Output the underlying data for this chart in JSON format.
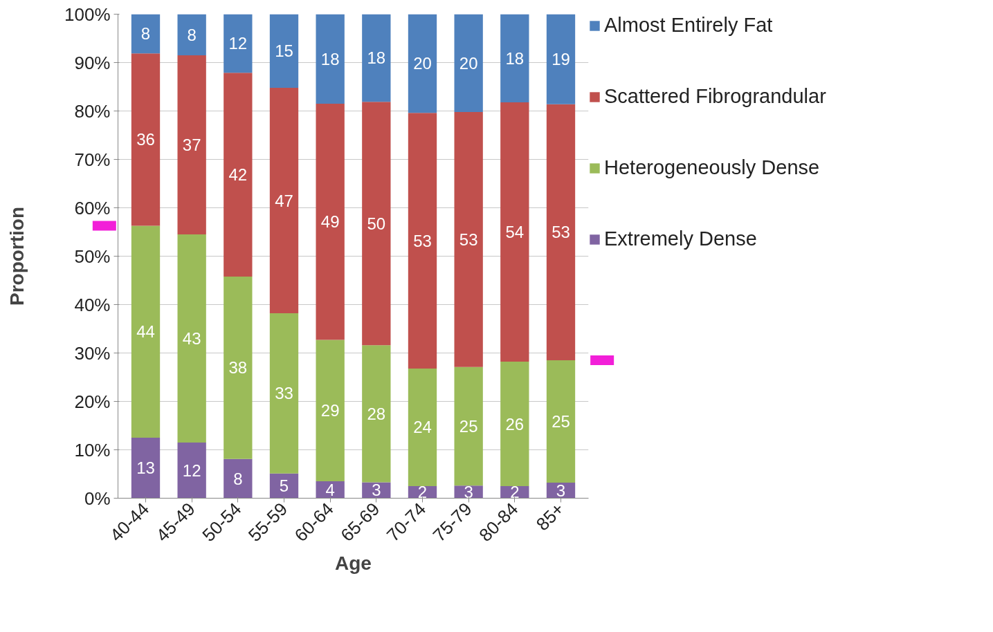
{
  "chart_data": {
    "type": "bar",
    "stacked": true,
    "xlabel": "Age",
    "ylabel": "Proportion",
    "categories": [
      "40-44",
      "45-49",
      "50-54",
      "55-59",
      "60-64",
      "65-69",
      "70-74",
      "75-79",
      "80-84",
      "85+"
    ],
    "series": [
      {
        "name": "Extremely Dense",
        "color": "#8064a2",
        "values": [
          12.5,
          11.5,
          8.1,
          5.1,
          3.5,
          3.3,
          2.5,
          2.6,
          2.5,
          3.2
        ],
        "value_labels": [
          "13",
          "12",
          "8",
          "5",
          "4",
          "3",
          "2",
          "3",
          "2",
          "3"
        ]
      },
      {
        "name": "Heterogeneously Dense",
        "color": "#9bbb59",
        "values": [
          43.8,
          43.0,
          37.7,
          33.1,
          29.2,
          28.3,
          24.3,
          24.5,
          25.7,
          25.3
        ],
        "value_labels": [
          "44",
          "43",
          "38",
          "33",
          "29",
          "28",
          "24",
          "25",
          "26",
          "25"
        ]
      },
      {
        "name": "Scattered Fibrograndular",
        "color": "#c0504d",
        "values": [
          35.6,
          37.0,
          42.1,
          46.6,
          48.8,
          50.3,
          52.8,
          52.7,
          53.6,
          52.9
        ],
        "value_labels": [
          "36",
          "37",
          "42",
          "47",
          "49",
          "50",
          "53",
          "53",
          "54",
          "53"
        ]
      },
      {
        "name": "Almost Entirely Fat",
        "color": "#4f81bd",
        "values": [
          8.1,
          8.5,
          12.1,
          15.2,
          18.5,
          18.1,
          20.4,
          20.2,
          18.2,
          18.6
        ],
        "value_labels": [
          "8",
          "8",
          "12",
          "15",
          "18",
          "18",
          "20",
          "20",
          "18",
          "19"
        ]
      }
    ],
    "ylim": [
      0,
      100
    ],
    "yticks": [
      {
        "value": 0,
        "label": "0%"
      },
      {
        "value": 10,
        "label": "10%"
      },
      {
        "value": 20,
        "label": "20%"
      },
      {
        "value": 30,
        "label": "30%"
      },
      {
        "value": 40,
        "label": "40%"
      },
      {
        "value": 50,
        "label": "50%"
      },
      {
        "value": 60,
        "label": "60%"
      },
      {
        "value": 70,
        "label": "70%"
      },
      {
        "value": 80,
        "label": "80%"
      },
      {
        "value": 90,
        "label": "90%"
      },
      {
        "value": 100,
        "label": "100%"
      }
    ],
    "grid": "y",
    "legend": "right"
  }
}
